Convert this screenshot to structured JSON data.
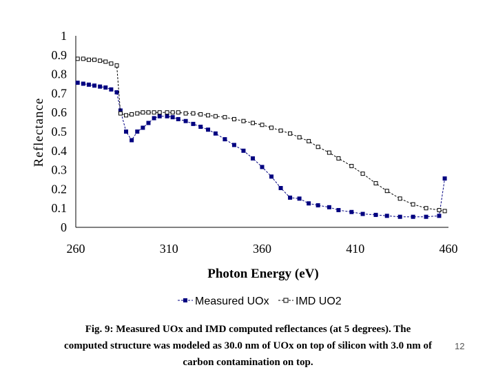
{
  "chart_data": {
    "type": "line",
    "xlabel": "Photon Energy (eV)",
    "ylabel": "Reflectance",
    "xlim": [
      260,
      460
    ],
    "ylim": [
      0,
      1
    ],
    "x_ticks": [
      "260",
      "310",
      "360",
      "410",
      "460"
    ],
    "y_ticks": [
      "0",
      "0.1",
      "0.2",
      "0.3",
      "0.4",
      "0.5",
      "0.6",
      "0.7",
      "0.8",
      "0.9",
      "1"
    ],
    "grid": false,
    "legend_position": "bottom",
    "series": [
      {
        "name": "Measured UOx",
        "color": "#000080",
        "marker": "filled-square",
        "x": [
          261,
          264,
          267,
          270,
          273,
          276,
          279,
          282,
          284,
          287,
          290,
          293,
          296,
          299,
          302,
          305,
          309,
          312,
          315,
          319,
          323,
          327,
          331,
          335,
          340,
          345,
          350,
          355,
          360,
          365,
          370,
          375,
          380,
          385,
          390,
          396,
          401,
          408,
          414,
          421,
          427,
          434,
          441,
          448,
          455,
          458
        ],
        "y": [
          0.755,
          0.75,
          0.745,
          0.74,
          0.735,
          0.73,
          0.72,
          0.705,
          0.61,
          0.5,
          0.455,
          0.5,
          0.52,
          0.545,
          0.57,
          0.58,
          0.58,
          0.575,
          0.565,
          0.555,
          0.54,
          0.525,
          0.51,
          0.49,
          0.46,
          0.43,
          0.4,
          0.36,
          0.315,
          0.265,
          0.205,
          0.155,
          0.15,
          0.125,
          0.115,
          0.105,
          0.09,
          0.08,
          0.07,
          0.065,
          0.06,
          0.055,
          0.055,
          0.055,
          0.06,
          0.255
        ]
      },
      {
        "name": "IMD UO2",
        "color": "#000000",
        "marker": "open-square",
        "x": [
          261,
          264,
          267,
          270,
          273,
          276,
          279,
          282,
          284,
          287,
          290,
          293,
          296,
          299,
          302,
          305,
          309,
          312,
          315,
          319,
          323,
          327,
          331,
          335,
          340,
          345,
          350,
          355,
          360,
          365,
          370,
          375,
          380,
          385,
          390,
          396,
          401,
          408,
          414,
          421,
          427,
          434,
          441,
          448,
          455,
          458
        ],
        "y": [
          0.88,
          0.88,
          0.875,
          0.875,
          0.87,
          0.865,
          0.855,
          0.845,
          0.595,
          0.585,
          0.59,
          0.595,
          0.6,
          0.6,
          0.6,
          0.6,
          0.6,
          0.6,
          0.6,
          0.595,
          0.595,
          0.59,
          0.585,
          0.58,
          0.575,
          0.565,
          0.555,
          0.545,
          0.535,
          0.52,
          0.505,
          0.49,
          0.47,
          0.45,
          0.42,
          0.39,
          0.36,
          0.32,
          0.28,
          0.23,
          0.19,
          0.15,
          0.12,
          0.1,
          0.09,
          0.085
        ]
      }
    ]
  },
  "caption": {
    "line1": "Fig.  9: Measured UOx and IMD computed reflectances (at 5 degrees). The",
    "line2": "computed structure was modeled as 30.0 nm of UOx on top of silicon with 3.0 nm of",
    "line3": "carbon contamination on top."
  },
  "page_number": "12"
}
